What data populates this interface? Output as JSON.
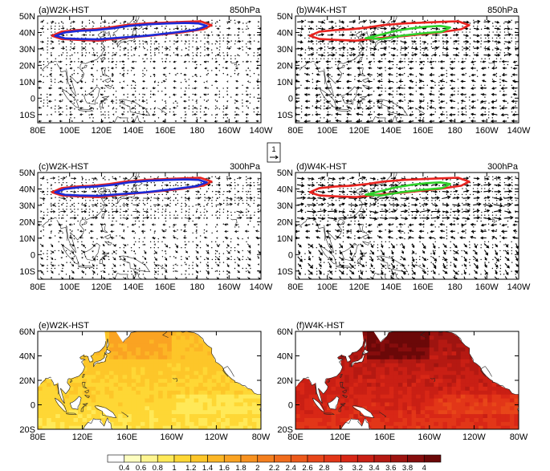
{
  "figure": {
    "ref_vector_label": "1"
  },
  "chart_data": [
    {
      "type": "vector-map",
      "panel_label": "(a)W2K-HST",
      "level": "850hPa",
      "lon_ticks": [
        "80E",
        "100E",
        "120E",
        "140E",
        "160E",
        "180",
        "160W",
        "140W"
      ],
      "lat_ticks": [
        "50N",
        "40N",
        "30N",
        "20N",
        "10N",
        "0",
        "10S"
      ],
      "lon_range": [
        80,
        220
      ],
      "lat_range": [
        -15,
        50
      ],
      "contours": [
        {
          "name": "red-jet-contour",
          "color": "#e8231f",
          "ring": [
            [
              89,
              38
            ],
            [
              95,
              40.5
            ],
            [
              105,
              41.5
            ],
            [
              115,
              42
            ],
            [
              125,
              43
            ],
            [
              135,
              44.5
            ],
            [
              148,
              45.5
            ],
            [
              160,
              46
            ],
            [
              172,
              46.5
            ],
            [
              182,
              46.8
            ],
            [
              189,
              44.5
            ],
            [
              184,
              42
            ],
            [
              170,
              40
            ],
            [
              150,
              38
            ],
            [
              132,
              36.5
            ],
            [
              118,
              35
            ],
            [
              105,
              35.5
            ],
            [
              95,
              36
            ],
            [
              89,
              38
            ]
          ]
        },
        {
          "name": "blue-jet-contour",
          "color": "#1c2bd8",
          "ring": [
            [
              91,
              38
            ],
            [
              97,
              40
            ],
            [
              106,
              41
            ],
            [
              117,
              41.5
            ],
            [
              127,
              42.5
            ],
            [
              137,
              44
            ],
            [
              150,
              45
            ],
            [
              162,
              45.5
            ],
            [
              173,
              45.8
            ],
            [
              181,
              45.5
            ],
            [
              186,
              44
            ],
            [
              180,
              41.8
            ],
            [
              166,
              40
            ],
            [
              148,
              38
            ],
            [
              131,
              36.8
            ],
            [
              118,
              35.8
            ],
            [
              106,
              36
            ],
            [
              97,
              36.4
            ],
            [
              91,
              38
            ]
          ]
        }
      ]
    },
    {
      "type": "vector-map",
      "panel_label": "(b)W4K-HST",
      "level": "850hPa",
      "lon_ticks": [
        "80E",
        "100E",
        "120E",
        "140E",
        "160E",
        "180",
        "160W",
        "140W"
      ],
      "lat_ticks": [
        "50N",
        "40N",
        "30N",
        "20N",
        "10N",
        "0",
        "10S"
      ],
      "lon_range": [
        80,
        220
      ],
      "lat_range": [
        -15,
        50
      ],
      "contours": [
        {
          "name": "red-jet-contour",
          "color": "#e8231f",
          "ring": [
            [
              89,
              38
            ],
            [
              95,
              40.5
            ],
            [
              105,
              41.5
            ],
            [
              115,
              42
            ],
            [
              125,
              43
            ],
            [
              135,
              44.5
            ],
            [
              148,
              45.5
            ],
            [
              160,
              46
            ],
            [
              172,
              46.5
            ],
            [
              182,
              46.8
            ],
            [
              189,
              44.5
            ],
            [
              184,
              42
            ],
            [
              170,
              40
            ],
            [
              150,
              38
            ],
            [
              132,
              36.5
            ],
            [
              118,
              35
            ],
            [
              105,
              35.5
            ],
            [
              95,
              36
            ],
            [
              89,
              38
            ]
          ]
        },
        {
          "name": "green-jet-contour",
          "color": "#2fd12a",
          "ring": [
            [
              124,
              36.5
            ],
            [
              133,
              38.5
            ],
            [
              143,
              41
            ],
            [
              153,
              42.5
            ],
            [
              162,
              43.5
            ],
            [
              171,
              44
            ],
            [
              177,
              43
            ],
            [
              172,
              40.5
            ],
            [
              160,
              39.5
            ],
            [
              146,
              38
            ],
            [
              134,
              36
            ],
            [
              124,
              36.5
            ]
          ]
        }
      ]
    },
    {
      "type": "vector-map",
      "panel_label": "(c)W2K-HST",
      "level": "300hPa",
      "lon_ticks": [
        "80E",
        "100E",
        "120E",
        "140E",
        "160E",
        "180",
        "160W",
        "140W"
      ],
      "lat_ticks": [
        "50N",
        "40N",
        "30N",
        "20N",
        "10N",
        "0",
        "10S"
      ],
      "lon_range": [
        80,
        220
      ],
      "lat_range": [
        -15,
        50
      ],
      "contours": [
        {
          "name": "red-jet-contour",
          "color": "#e8231f",
          "ring": [
            [
              89,
              38
            ],
            [
              95,
              40.5
            ],
            [
              105,
              41.5
            ],
            [
              115,
              42
            ],
            [
              125,
              43
            ],
            [
              135,
              44.5
            ],
            [
              148,
              45.5
            ],
            [
              160,
              46
            ],
            [
              172,
              46.5
            ],
            [
              182,
              46.8
            ],
            [
              189,
              44.5
            ],
            [
              184,
              42
            ],
            [
              170,
              40
            ],
            [
              150,
              38
            ],
            [
              132,
              36.5
            ],
            [
              118,
              35
            ],
            [
              105,
              35.5
            ],
            [
              95,
              36
            ],
            [
              89,
              38
            ]
          ]
        },
        {
          "name": "blue-jet-contour",
          "color": "#1c2bd8",
          "ring": [
            [
              91,
              38
            ],
            [
              97,
              40
            ],
            [
              106,
              41
            ],
            [
              117,
              41.5
            ],
            [
              127,
              42.5
            ],
            [
              137,
              44
            ],
            [
              150,
              45
            ],
            [
              162,
              45.5
            ],
            [
              173,
              45.8
            ],
            [
              181,
              45.5
            ],
            [
              186,
              44
            ],
            [
              180,
              41.8
            ],
            [
              166,
              40
            ],
            [
              148,
              38
            ],
            [
              131,
              36.8
            ],
            [
              118,
              35.8
            ],
            [
              106,
              36
            ],
            [
              97,
              36.4
            ],
            [
              91,
              38
            ]
          ]
        }
      ]
    },
    {
      "type": "vector-map",
      "panel_label": "(d)W4K-HST",
      "level": "300hPa",
      "lon_ticks": [
        "80E",
        "100E",
        "120E",
        "140E",
        "160E",
        "180",
        "160W",
        "140W"
      ],
      "lat_ticks": [
        "50N",
        "40N",
        "30N",
        "20N",
        "10N",
        "0",
        "10S"
      ],
      "lon_range": [
        80,
        220
      ],
      "lat_range": [
        -15,
        50
      ],
      "contours": [
        {
          "name": "red-jet-contour",
          "color": "#e8231f",
          "ring": [
            [
              89,
              38
            ],
            [
              95,
              40.5
            ],
            [
              105,
              41.5
            ],
            [
              115,
              42
            ],
            [
              125,
              43
            ],
            [
              135,
              44.5
            ],
            [
              148,
              45.5
            ],
            [
              160,
              46
            ],
            [
              172,
              46.5
            ],
            [
              182,
              46.8
            ],
            [
              189,
              44.5
            ],
            [
              184,
              42
            ],
            [
              170,
              40
            ],
            [
              150,
              38
            ],
            [
              132,
              36.5
            ],
            [
              118,
              35
            ],
            [
              105,
              35.5
            ],
            [
              95,
              36
            ],
            [
              89,
              38
            ]
          ]
        },
        {
          "name": "green-jet-contour",
          "color": "#2fd12a",
          "ring": [
            [
              124,
              36.5
            ],
            [
              133,
              38.5
            ],
            [
              143,
              41
            ],
            [
              153,
              42.5
            ],
            [
              162,
              43.5
            ],
            [
              171,
              44
            ],
            [
              177,
              43
            ],
            [
              172,
              40.5
            ],
            [
              160,
              39.5
            ],
            [
              146,
              38
            ],
            [
              134,
              36
            ],
            [
              124,
              36.5
            ]
          ]
        }
      ]
    },
    {
      "type": "heatmap",
      "panel_label": "(e)W2K-HST",
      "lon_ticks": [
        "80E",
        "120E",
        "160E",
        "160W",
        "120W",
        "80W"
      ],
      "lat_ticks": [
        "60N",
        "40N",
        "20N",
        "0",
        "20S"
      ],
      "lon_range": [
        80,
        280
      ],
      "lat_range": [
        -20,
        60
      ],
      "warming_range": [
        0.8,
        1.6
      ]
    },
    {
      "type": "heatmap",
      "panel_label": "(f)W4K-HST",
      "lon_ticks": [
        "80E",
        "120E",
        "160E",
        "160W",
        "120W",
        "80W"
      ],
      "lat_ticks": [
        "60N",
        "40N",
        "20N",
        "0",
        "20S"
      ],
      "lon_range": [
        80,
        280
      ],
      "lat_range": [
        -20,
        60
      ],
      "warming_range": [
        2.6,
        4.0
      ]
    },
    {
      "type": "colorbar",
      "levels": [
        "0.4",
        "0.6",
        "0.8",
        "1",
        "1.2",
        "1.4",
        "1.6",
        "1.8",
        "2",
        "2.2",
        "2.4",
        "2.6",
        "2.8",
        "3",
        "3.2",
        "3.4",
        "3.6",
        "3.8",
        "4"
      ],
      "colors": [
        "#ffffff",
        "#fdfec0",
        "#fef590",
        "#ffe958",
        "#fed735",
        "#fdc629",
        "#fcb625",
        "#faa322",
        "#f89220",
        "#f47f1e",
        "#f16c1c",
        "#ed5a1b",
        "#e84619",
        "#e23618",
        "#d82716",
        "#c91f14",
        "#b51912",
        "#9e1410",
        "#860d0d",
        "#6b0808"
      ]
    }
  ]
}
